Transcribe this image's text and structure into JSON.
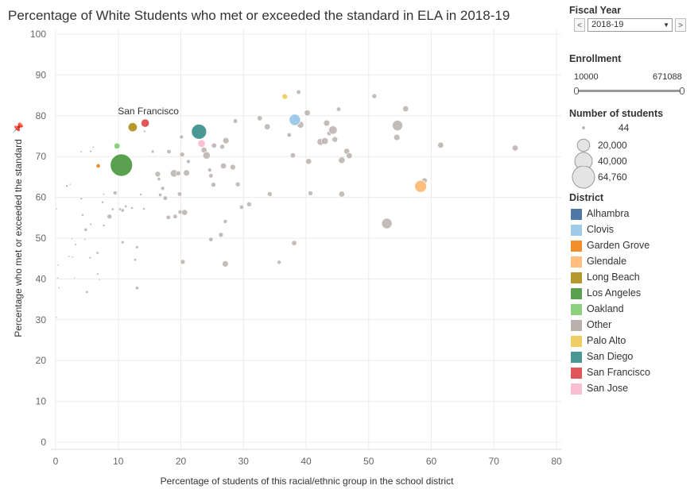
{
  "chart_data": {
    "type": "scatter",
    "title": "Percentage of White Students who met or exceeded the standard in ELA in 2018-19",
    "xlabel": "Percentage of students of this racial/ethnic group in the school district",
    "ylabel": "Percentage who met or exceeded the standard",
    "xlim": [
      0,
      80
    ],
    "ylim": [
      0,
      100
    ],
    "x_ticks": [
      0,
      10,
      20,
      30,
      40,
      50,
      60,
      70,
      80
    ],
    "y_ticks": [
      0,
      10,
      20,
      30,
      40,
      50,
      60,
      70,
      80,
      90,
      100
    ],
    "grid": true,
    "annotation": {
      "text": "San Francisco",
      "x": 14.3,
      "y": 78.2
    },
    "highlighted_points": [
      {
        "district": "Alhambra",
        "x": 1.8,
        "y": 62.8,
        "students": 300
      },
      {
        "district": "Clovis",
        "x": 38.2,
        "y": 79.0,
        "students": 17000
      },
      {
        "district": "Garden Grove",
        "x": 6.8,
        "y": 67.7,
        "students": 2500
      },
      {
        "district": "Glendale",
        "x": 58.3,
        "y": 62.7,
        "students": 19000
      },
      {
        "district": "Long Beach",
        "x": 12.3,
        "y": 77.2,
        "students": 11000
      },
      {
        "district": "Los Angeles",
        "x": 10.5,
        "y": 67.9,
        "students": 64760
      },
      {
        "district": "Oakland",
        "x": 9.8,
        "y": 72.6,
        "students": 5000
      },
      {
        "district": "Palo Alto",
        "x": 36.6,
        "y": 84.7,
        "students": 4000
      },
      {
        "district": "San Diego",
        "x": 22.9,
        "y": 76.1,
        "students": 30000
      },
      {
        "district": "San Francisco",
        "x": 14.3,
        "y": 78.2,
        "students": 9000
      },
      {
        "district": "San Jose",
        "x": 23.3,
        "y": 73.2,
        "students": 7500
      }
    ],
    "other_points": [
      [
        0.1,
        57.2,
        300
      ],
      [
        0.4,
        43.4,
        300
      ],
      [
        0.3,
        40.2,
        300
      ],
      [
        0.5,
        37.8,
        300
      ],
      [
        0.1,
        30.6,
        400
      ],
      [
        2.3,
        63.2,
        300
      ],
      [
        2.6,
        49.9,
        300
      ],
      [
        2.1,
        45.5,
        400
      ],
      [
        2.7,
        45.4,
        400
      ],
      [
        3.0,
        40.2,
        300
      ],
      [
        3.2,
        48.4,
        600
      ],
      [
        4.1,
        71.2,
        500
      ],
      [
        4.3,
        55.7,
        800
      ],
      [
        4.7,
        49.7,
        500
      ],
      [
        4.1,
        59.7,
        800
      ],
      [
        4.8,
        52.1,
        1500
      ],
      [
        5.0,
        36.8,
        1000
      ],
      [
        5.6,
        71.3,
        700
      ],
      [
        6.0,
        72.3,
        500
      ],
      [
        5.6,
        53.4,
        700
      ],
      [
        5.5,
        45.2,
        700
      ],
      [
        6.7,
        46.4,
        1000
      ],
      [
        6.7,
        41.2,
        700
      ],
      [
        7.0,
        39.9,
        500
      ],
      [
        7.5,
        58.8,
        800
      ],
      [
        7.7,
        60.8,
        500
      ],
      [
        7.7,
        53.1,
        800
      ],
      [
        8.6,
        55.3,
        3000
      ],
      [
        9.5,
        61.1,
        2000
      ],
      [
        9.1,
        57.1,
        1000
      ],
      [
        10.3,
        57.1,
        1000
      ],
      [
        10.7,
        56.8,
        1500
      ],
      [
        10.7,
        49.0,
        1200
      ],
      [
        11.2,
        57.8,
        1000
      ],
      [
        12.2,
        57.4,
        800
      ],
      [
        12.7,
        44.7,
        1000
      ],
      [
        13.0,
        47.8,
        1200
      ],
      [
        13.0,
        37.8,
        1500
      ],
      [
        13.6,
        60.7,
        800
      ],
      [
        14.1,
        57.2,
        800
      ],
      [
        14.2,
        76.2,
        800
      ],
      [
        15.5,
        71.2,
        1200
      ],
      [
        16.7,
        60.6,
        1500
      ],
      [
        16.3,
        65.7,
        4000
      ],
      [
        16.5,
        64.5,
        1500
      ],
      [
        17.1,
        62.2,
        2000
      ],
      [
        17.5,
        59.8,
        2500
      ],
      [
        18.1,
        71.2,
        2500
      ],
      [
        18.0,
        55.1,
        2500
      ],
      [
        18.9,
        65.9,
        7000
      ],
      [
        19.1,
        55.3,
        2500
      ],
      [
        19.6,
        65.9,
        3000
      ],
      [
        19.8,
        60.8,
        2500
      ],
      [
        19.9,
        56.4,
        2500
      ],
      [
        20.1,
        74.8,
        2000
      ],
      [
        20.2,
        70.5,
        3000
      ],
      [
        20.6,
        56.3,
        4500
      ],
      [
        20.9,
        66.0,
        5000
      ],
      [
        21.2,
        68.8,
        2000
      ],
      [
        20.3,
        44.2,
        3000
      ],
      [
        23.7,
        71.6,
        4500
      ],
      [
        24.1,
        70.3,
        7000
      ],
      [
        24.6,
        66.7,
        2000
      ],
      [
        24.8,
        65.3,
        2500
      ],
      [
        24.8,
        49.7,
        2500
      ],
      [
        25.2,
        63.1,
        3000
      ],
      [
        25.3,
        72.7,
        3500
      ],
      [
        26.4,
        50.8,
        3000
      ],
      [
        26.6,
        72.4,
        3000
      ],
      [
        26.8,
        67.7,
        4500
      ],
      [
        27.1,
        54.1,
        2000
      ],
      [
        27.2,
        73.9,
        5000
      ],
      [
        27.1,
        43.7,
        5000
      ],
      [
        28.3,
        67.4,
        4000
      ],
      [
        28.7,
        78.7,
        2500
      ],
      [
        29.1,
        63.2,
        3000
      ],
      [
        29.7,
        57.6,
        2500
      ],
      [
        30.9,
        58.3,
        3000
      ],
      [
        32.6,
        79.4,
        3500
      ],
      [
        33.8,
        77.3,
        4500
      ],
      [
        34.2,
        60.8,
        3000
      ],
      [
        35.7,
        44.1,
        2000
      ],
      [
        37.3,
        75.3,
        2500
      ],
      [
        37.9,
        70.3,
        3500
      ],
      [
        38.1,
        48.8,
        3500
      ],
      [
        38.8,
        85.8,
        2500
      ],
      [
        39.1,
        77.8,
        6000
      ],
      [
        40.2,
        80.7,
        4500
      ],
      [
        40.4,
        68.8,
        4500
      ],
      [
        40.7,
        61.0,
        3000
      ],
      [
        42.3,
        73.6,
        6000
      ],
      [
        43.0,
        73.8,
        6000
      ],
      [
        43.3,
        78.2,
        5000
      ],
      [
        43.7,
        75.7,
        3000
      ],
      [
        44.3,
        76.5,
        9000
      ],
      [
        44.6,
        74.2,
        4000
      ],
      [
        45.2,
        81.6,
        2500
      ],
      [
        45.7,
        60.8,
        4500
      ],
      [
        45.7,
        69.1,
        5500
      ],
      [
        46.5,
        71.3,
        4500
      ],
      [
        46.9,
        70.2,
        4500
      ],
      [
        50.9,
        84.8,
        3000
      ],
      [
        52.9,
        53.6,
        14000
      ],
      [
        54.6,
        77.6,
        14000
      ],
      [
        54.5,
        74.7,
        5000
      ],
      [
        55.9,
        81.7,
        4500
      ],
      [
        58.9,
        64.1,
        4000
      ],
      [
        61.5,
        72.8,
        4500
      ],
      [
        73.4,
        72.1,
        4500
      ]
    ]
  },
  "sidebar": {
    "fiscal_year": {
      "title": "Fiscal Year",
      "value": "2018-19",
      "prev": "<",
      "next": ">"
    },
    "enrollment": {
      "title": "Enrollment",
      "min": "10000",
      "max": "671088"
    },
    "size_legend": {
      "title": "Number of students",
      "items": [
        {
          "label": "44",
          "students": 44
        },
        {
          "label": "20,000",
          "students": 20000
        },
        {
          "label": "40,000",
          "students": 40000
        },
        {
          "label": "64,760",
          "students": 64760
        }
      ]
    },
    "district_legend": {
      "title": "District",
      "items": [
        {
          "label": "Alhambra",
          "color": "#4e79a7"
        },
        {
          "label": "Clovis",
          "color": "#a0cbe8"
        },
        {
          "label": "Garden Grove",
          "color": "#f28e2b"
        },
        {
          "label": "Glendale",
          "color": "#ffbe7d"
        },
        {
          "label": "Long Beach",
          "color": "#b6992d"
        },
        {
          "label": "Los Angeles",
          "color": "#59a14f"
        },
        {
          "label": "Oakland",
          "color": "#8cd17d"
        },
        {
          "label": "Other",
          "color": "#bab0ac"
        },
        {
          "label": "Palo Alto",
          "color": "#f1ce63"
        },
        {
          "label": "San Diego",
          "color": "#499894"
        },
        {
          "label": "San Francisco",
          "color": "#e15759"
        },
        {
          "label": "San Jose",
          "color": "#fabfd2"
        }
      ]
    }
  }
}
